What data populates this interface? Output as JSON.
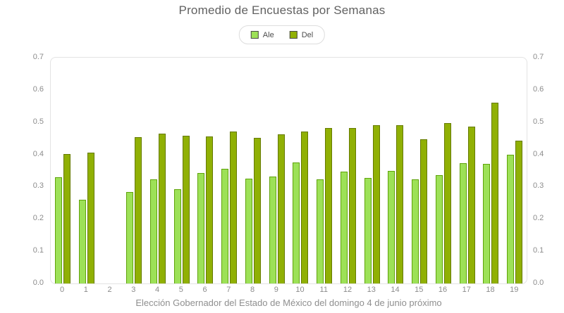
{
  "chart_data": {
    "type": "bar",
    "title": "Promedio de Encuestas por Semanas",
    "xlabel": "Elección Gobernador del Estado de México del domingo 4 de junio próximo",
    "ylabel": "",
    "ylim": [
      0,
      0.7
    ],
    "y_ticks": [
      "0.0",
      "0.1",
      "0.2",
      "0.3",
      "0.4",
      "0.5",
      "0.6",
      "0.7"
    ],
    "y_axis_sides": [
      "left",
      "right"
    ],
    "grid": false,
    "legend_position": "top-center",
    "categories": [
      "0",
      "1",
      "2",
      "3",
      "4",
      "5",
      "6",
      "7",
      "8",
      "9",
      "10",
      "11",
      "12",
      "13",
      "14",
      "15",
      "16",
      "17",
      "18",
      "19"
    ],
    "series": [
      {
        "name": "Ale",
        "fill": "#9de157",
        "border": "#5fa30a",
        "values": [
          0.33,
          0.26,
          null,
          0.283,
          0.322,
          0.293,
          0.343,
          0.355,
          0.325,
          0.332,
          0.376,
          0.322,
          0.346,
          0.327,
          0.349,
          0.322,
          0.336,
          0.373,
          0.37,
          0.4
        ]
      },
      {
        "name": "Del",
        "fill": "#90b004",
        "border": "#657a00",
        "values": [
          0.402,
          0.405,
          null,
          0.454,
          0.465,
          0.459,
          0.456,
          0.47,
          0.451,
          0.463,
          0.47,
          0.483,
          0.481,
          0.491,
          0.491,
          0.446,
          0.497,
          0.486,
          0.561,
          0.443
        ]
      }
    ]
  },
  "colors": {
    "title_text": "#616161",
    "axis_text": "#8c8c8c",
    "axis_title_text": "#8f8f8f",
    "plot_border": "#e3e3e3",
    "legend_border": "#dddddd",
    "background": "#ffffff"
  }
}
